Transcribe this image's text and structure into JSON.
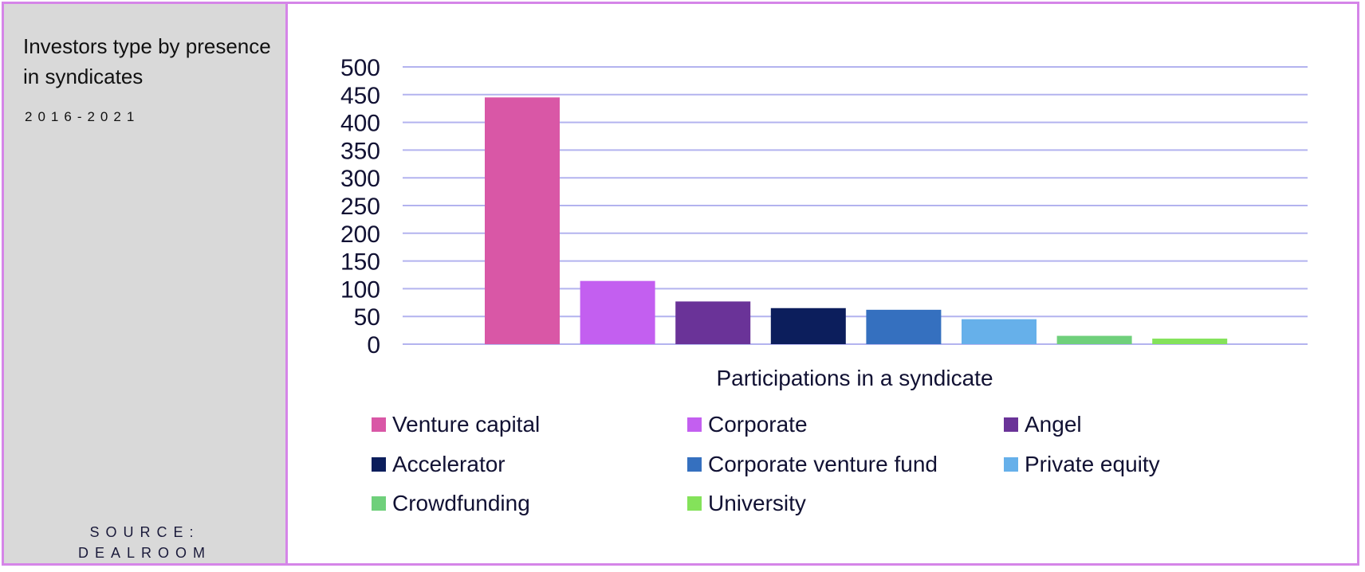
{
  "sidebar": {
    "title": "Investors type by presence in syndicates",
    "period": "2016-2021",
    "source_line1": "SOURCE:",
    "source_line2": "DEALROOM"
  },
  "chart_data": {
    "type": "bar",
    "title": "",
    "xlabel": "Participations in a syndicate",
    "ylabel": "",
    "ylim": [
      0,
      500
    ],
    "yticks": [
      0,
      50,
      100,
      150,
      200,
      250,
      300,
      350,
      400,
      450,
      500
    ],
    "grid": true,
    "legend_position": "bottom",
    "series": [
      {
        "name": "Venture capital",
        "value": 445,
        "color": "#d957a6"
      },
      {
        "name": "Corporate",
        "value": 114,
        "color": "#c35ff0"
      },
      {
        "name": "Angel",
        "value": 77,
        "color": "#6a3398"
      },
      {
        "name": "Accelerator",
        "value": 65,
        "color": "#0c1e5c"
      },
      {
        "name": "Corporate venture fund",
        "value": 62,
        "color": "#3570bf"
      },
      {
        "name": "Private equity",
        "value": 45,
        "color": "#66b0ea"
      },
      {
        "name": "Crowdfunding",
        "value": 15,
        "color": "#6fd07b"
      },
      {
        "name": "University",
        "value": 10,
        "color": "#84e25a"
      }
    ]
  }
}
